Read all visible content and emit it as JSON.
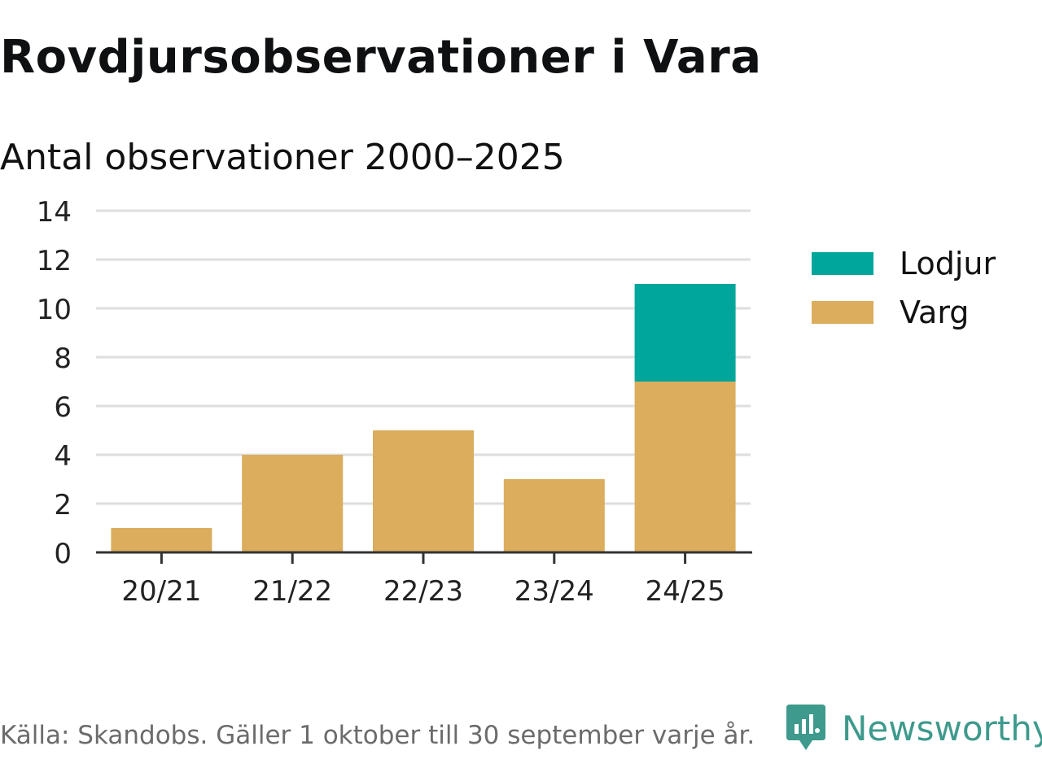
{
  "header": {
    "title": "Rovdjursobservationer i Vara",
    "subtitle": "Antal observationer 2000–2025"
  },
  "footer": {
    "source": "Källa: Skandobs. Gäller 1 oktober till 30 september varje år.",
    "brand": "Newsworthy",
    "brand_icon": "chart-bubble-icon",
    "brand_color": "#3d9a8c"
  },
  "legend_placement": "right",
  "chart_data": {
    "type": "bar",
    "stacked": true,
    "categories": [
      "20/21",
      "21/22",
      "22/23",
      "23/24",
      "24/25"
    ],
    "series": [
      {
        "name": "Varg",
        "color": "#dbad5c",
        "values": [
          1,
          4,
          5,
          3,
          7
        ]
      },
      {
        "name": "Lodjur",
        "color": "#00a69c",
        "values": [
          0,
          0,
          0,
          0,
          4
        ]
      }
    ],
    "legend_order": [
      "Lodjur",
      "Varg"
    ],
    "ylim": [
      0,
      14
    ],
    "yticks": [
      "0",
      "2",
      "4",
      "6",
      "8",
      "10",
      "12",
      "14"
    ],
    "grid": true,
    "xlabel": "",
    "ylabel": ""
  }
}
